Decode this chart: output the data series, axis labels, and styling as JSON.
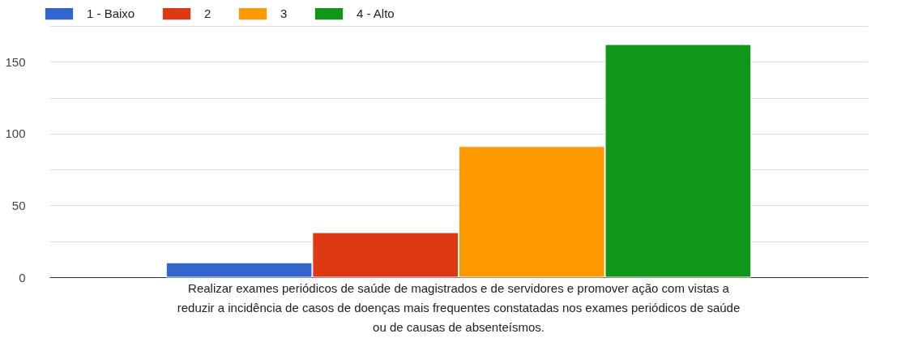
{
  "chart_data": {
    "type": "bar",
    "categories": [
      "Realizar exames periódicos de saúde de magistrados e de servidores e promover ação com vistas a reduzir a incidência de casos de doenças mais frequentes constatadas nos exames periódicos de saúde ou de causas de absenteísmos."
    ],
    "series": [
      {
        "name": "1 - Baixo",
        "color": "#3366cc",
        "values": [
          10
        ]
      },
      {
        "name": "2",
        "color": "#dc3912",
        "values": [
          31
        ]
      },
      {
        "name": "3",
        "color": "#ff9900",
        "values": [
          91
        ]
      },
      {
        "name": "4 - Alto",
        "color": "#109618",
        "values": [
          162
        ]
      }
    ],
    "ylim": [
      0,
      175
    ],
    "yticks": [
      0,
      {
        "value": 25,
        "label": null
      },
      50,
      {
        "value": 75,
        "label": null
      },
      100,
      {
        "value": 125,
        "label": null
      },
      150,
      {
        "value": 175,
        "label": null
      }
    ],
    "grid": "y",
    "legend": "top left"
  }
}
